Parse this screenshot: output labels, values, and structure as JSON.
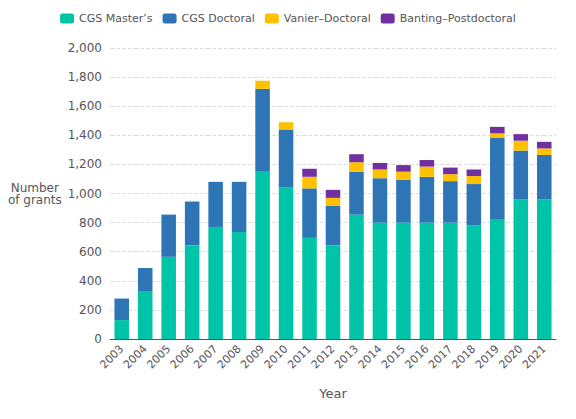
{
  "chart_data": {
    "type": "bar",
    "stacked": true,
    "grid": true,
    "legend": "top",
    "xlabel": "Year",
    "ylabel": "Number\nof grants",
    "categories": [
      "2003",
      "2004",
      "2005",
      "2006",
      "2007",
      "2008",
      "2009",
      "2010",
      "2011",
      "2012",
      "2013",
      "2014",
      "2015",
      "2016",
      "2017",
      "2018",
      "2019",
      "2020",
      "2021"
    ],
    "series": [
      {
        "name": "CGS Master’s",
        "color": "#00C4A7",
        "values": [
          130,
          330,
          565,
          645,
          770,
          735,
          1155,
          1040,
          695,
          645,
          855,
          800,
          800,
          800,
          800,
          780,
          820,
          960,
          960
        ]
      },
      {
        "name": "CGS Doctoral",
        "color": "#2E75B6",
        "values": [
          148,
          158,
          290,
          300,
          310,
          345,
          565,
          400,
          340,
          270,
          295,
          305,
          295,
          315,
          285,
          285,
          565,
          335,
          305
        ]
      },
      {
        "name": "Vanier–Doctoral",
        "color": "#FFC000",
        "values": [
          0,
          0,
          0,
          0,
          0,
          0,
          55,
          50,
          80,
          55,
          65,
          60,
          55,
          70,
          48,
          55,
          28,
          68,
          45
        ]
      },
      {
        "name": "Banting–Postdoctoral",
        "color": "#7030A0",
        "values": [
          0,
          0,
          0,
          0,
          0,
          0,
          0,
          0,
          55,
          55,
          55,
          45,
          45,
          45,
          45,
          45,
          45,
          45,
          45
        ]
      }
    ],
    "ylim": [
      0,
      2000
    ],
    "yticks": [
      0,
      200,
      400,
      600,
      800,
      {
        "value": 1000,
        "label": "1,000"
      },
      {
        "value": 1200,
        "label": "1,200"
      },
      {
        "value": 1400,
        "label": "1,400"
      },
      {
        "value": 1600,
        "label": "1,600"
      },
      {
        "value": 1800,
        "label": "1,800"
      },
      {
        "value": 2000,
        "label": "2,000"
      }
    ]
  }
}
